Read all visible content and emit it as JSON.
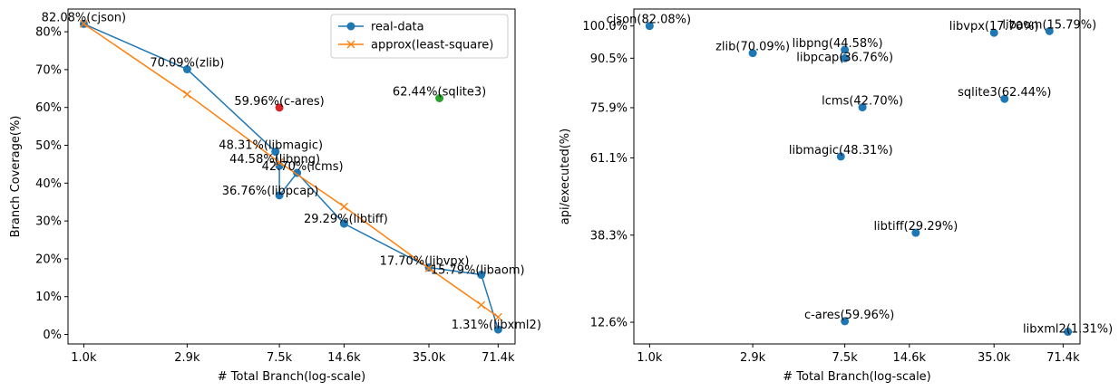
{
  "chart_data": [
    {
      "type": "line",
      "xlabel": "# Total Branch(log-scale)",
      "ylabel": "Branch Coverage(%)",
      "xscale": "log",
      "grid": false,
      "legend_position": "top-right",
      "x_ticks": [
        {
          "value": 1000,
          "label": "1.0k"
        },
        {
          "value": 2900,
          "label": "2.9k"
        },
        {
          "value": 7500,
          "label": "7.5k"
        },
        {
          "value": 14600,
          "label": "14.6k"
        },
        {
          "value": 35000,
          "label": "35.0k"
        },
        {
          "value": 71400,
          "label": "71.4k"
        }
      ],
      "y_ticks": [
        {
          "value": 0,
          "label": "0%"
        },
        {
          "value": 10,
          "label": "10%"
        },
        {
          "value": 20,
          "label": "20%"
        },
        {
          "value": 30,
          "label": "30%"
        },
        {
          "value": 40,
          "label": "40%"
        },
        {
          "value": 50,
          "label": "50%"
        },
        {
          "value": 60,
          "label": "60%"
        },
        {
          "value": 70,
          "label": "70%"
        },
        {
          "value": 80,
          "label": "80%"
        }
      ],
      "xlim": [
        850,
        85000
      ],
      "ylim": [
        -2.5,
        86
      ],
      "series": [
        {
          "name": "real-data",
          "color": "#1f77b4",
          "marker": "circle",
          "points": [
            {
              "x": 1000,
              "y": 82.08,
              "label": "82.08%(cjson)"
            },
            {
              "x": 2900,
              "y": 70.09,
              "label": "70.09%(zlib)"
            },
            {
              "x": 7200,
              "y": 48.31,
              "label": "48.31%(libmagic)"
            },
            {
              "x": 7500,
              "y": 44.58,
              "label": "44.58%(libpng)"
            },
            {
              "x": 7500,
              "y": 36.76,
              "label": "36.76%(libpcap)"
            },
            {
              "x": 9000,
              "y": 42.7,
              "label": "42.70%(lcms)"
            },
            {
              "x": 14600,
              "y": 29.29,
              "label": "29.29%(libtiff)"
            },
            {
              "x": 35000,
              "y": 17.7,
              "label": "17.70%(libvpx)"
            },
            {
              "x": 60000,
              "y": 15.79,
              "label": "15.79%(libaom)"
            },
            {
              "x": 71400,
              "y": 1.31,
              "label": "1.31%(libxml2)"
            }
          ]
        },
        {
          "name": "approx(least-square)",
          "color": "#ff7f0e",
          "marker": "x",
          "points": [
            {
              "x": 1000,
              "y": 82.08
            },
            {
              "x": 2900,
              "y": 63.5
            },
            {
              "x": 7500,
              "y": 45.5
            },
            {
              "x": 14600,
              "y": 33.8
            },
            {
              "x": 35000,
              "y": 17.5
            },
            {
              "x": 60000,
              "y": 7.8
            },
            {
              "x": 71400,
              "y": 4.6
            }
          ]
        }
      ],
      "outliers": [
        {
          "x": 7500,
          "y": 59.96,
          "label": "59.96%(c-ares)",
          "color": "#d62728"
        },
        {
          "x": 39000,
          "y": 62.44,
          "label": "62.44%(sqlite3)",
          "color": "#2ca02c"
        }
      ]
    },
    {
      "type": "scatter",
      "xlabel": "# Total Branch(log-scale)",
      "ylabel": "api/executed(%)",
      "xscale": "log",
      "grid": false,
      "x_ticks": [
        {
          "value": 1000,
          "label": "1.0k"
        },
        {
          "value": 2900,
          "label": "2.9k"
        },
        {
          "value": 7500,
          "label": "7.5k"
        },
        {
          "value": 14600,
          "label": "14.6k"
        },
        {
          "value": 35000,
          "label": "35.0k"
        },
        {
          "value": 71400,
          "label": "71.4k"
        }
      ],
      "y_ticks": [
        {
          "value": 12.6,
          "label": "12.6%"
        },
        {
          "value": 38.3,
          "label": "38.3%"
        },
        {
          "value": 61.1,
          "label": "61.1%"
        },
        {
          "value": 75.9,
          "label": "75.9%"
        },
        {
          "value": 90.5,
          "label": "90.5%"
        },
        {
          "value": 100.0,
          "label": "100.0%"
        }
      ],
      "xlim": [
        850,
        85000
      ],
      "ylim": [
        6.2,
        105
      ],
      "series": [
        {
          "color": "#1f77b4",
          "marker": "circle",
          "points": [
            {
              "x": 1000,
              "y": 100.0,
              "label": "cjson(82.08%)"
            },
            {
              "x": 2900,
              "y": 92.0,
              "label": "zlib(70.09%)"
            },
            {
              "x": 7500,
              "y": 93.0,
              "label": "libpng(44.58%)"
            },
            {
              "x": 7500,
              "y": 90.5,
              "label": "libpcap(36.76%)"
            },
            {
              "x": 9000,
              "y": 76.0,
              "label": "lcms(42.70%)"
            },
            {
              "x": 7200,
              "y": 61.5,
              "label": "libmagic(48.31%)"
            },
            {
              "x": 15600,
              "y": 39.0,
              "label": "libtiff(29.29%)"
            },
            {
              "x": 7500,
              "y": 12.9,
              "label": "c-ares(59.96%)"
            },
            {
              "x": 35000,
              "y": 98.0,
              "label": "libvpx(17.70%)"
            },
            {
              "x": 62000,
              "y": 98.5,
              "label": "libaom(15.79%)"
            },
            {
              "x": 39000,
              "y": 78.5,
              "label": "sqlite3(62.44%)"
            },
            {
              "x": 75000,
              "y": 9.8,
              "label": "libxml2(1.31%)"
            }
          ]
        }
      ]
    }
  ]
}
